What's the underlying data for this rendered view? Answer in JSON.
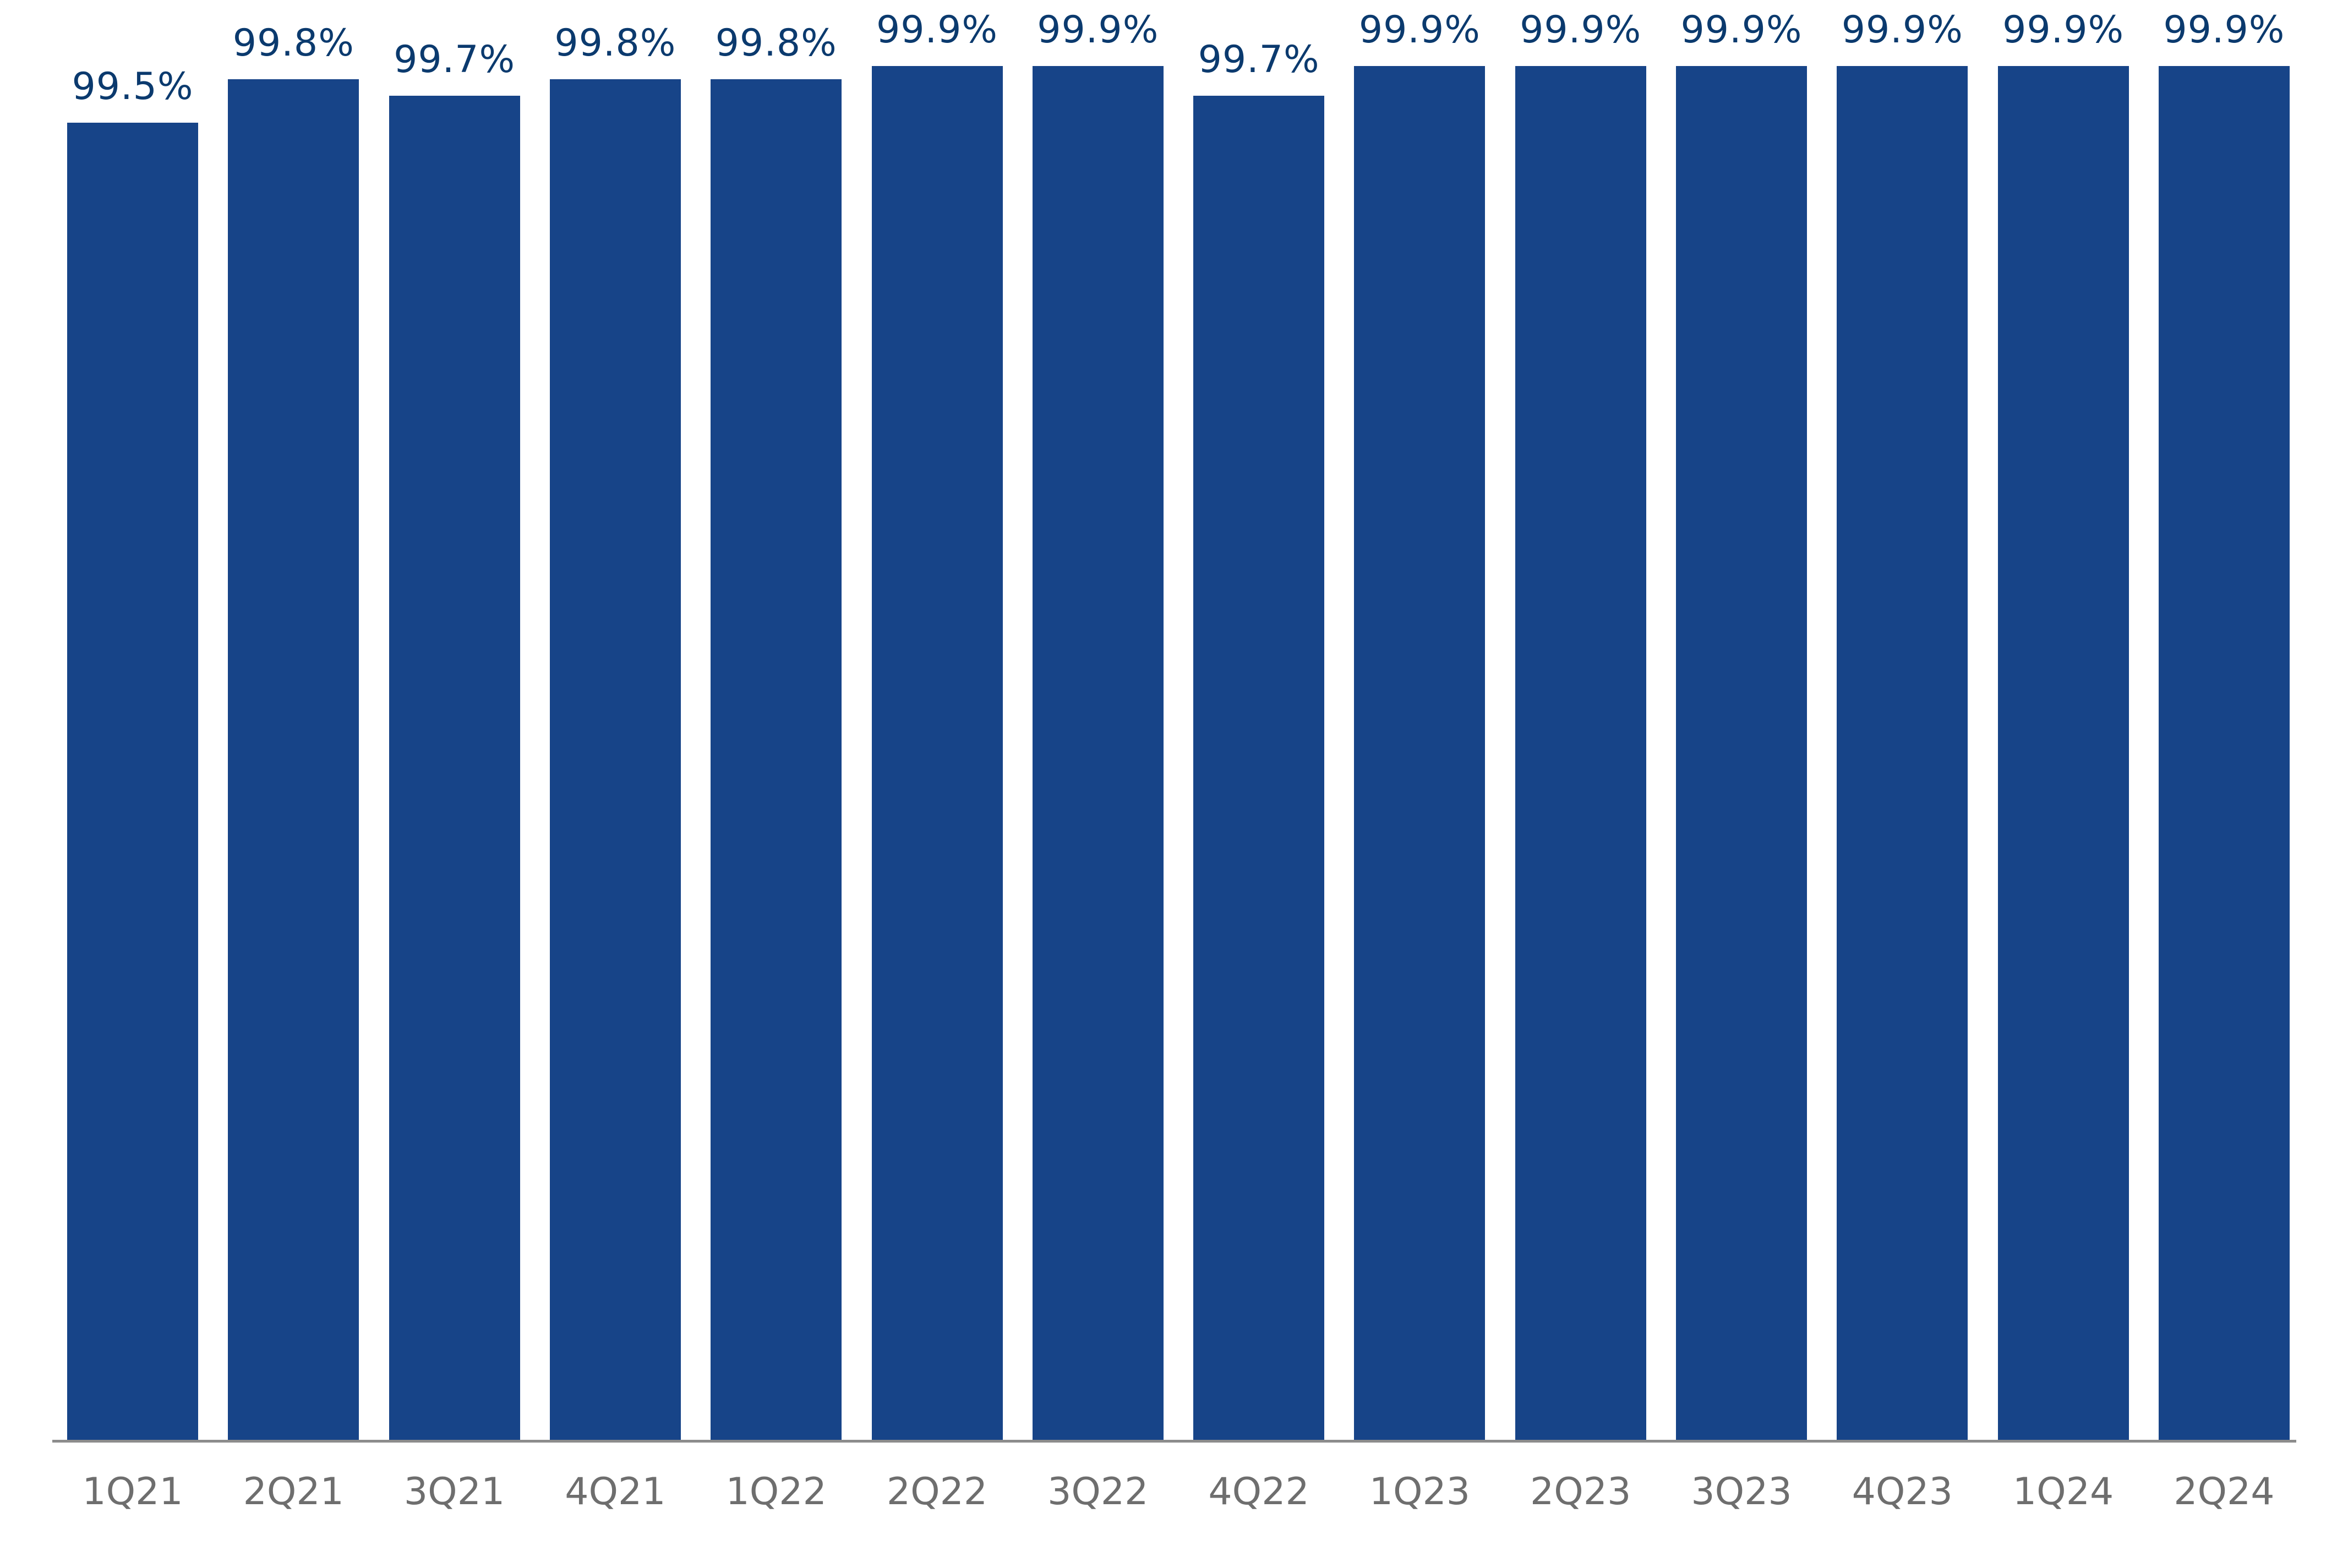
{
  "chart_data": {
    "type": "bar",
    "title": "",
    "xlabel": "",
    "ylabel": "",
    "categories": [
      "1Q21",
      "2Q21",
      "3Q21",
      "4Q21",
      "1Q22",
      "2Q22",
      "3Q22",
      "4Q22",
      "1Q23",
      "2Q23",
      "3Q23",
      "4Q23",
      "1Q24",
      "2Q24"
    ],
    "values": [
      99.5,
      99.8,
      99.7,
      99.8,
      99.8,
      99.9,
      99.9,
      99.7,
      99.9,
      99.9,
      99.9,
      99.9,
      99.9,
      99.9
    ],
    "value_labels": [
      "99.5%",
      "99.8%",
      "99.7%",
      "99.8%",
      "99.8%",
      "99.9%",
      "99.9%",
      "99.7%",
      "99.9%",
      "99.9%",
      "99.9%",
      "99.9%",
      "99.9%",
      "99.9%"
    ],
    "ylim": [
      98.9,
      99.9
    ],
    "grid": false,
    "legend": null,
    "colors": {
      "bar": "#174488",
      "value_label": "#0b3a6e",
      "axis_label": "#6e6e6e",
      "axis_line": "#8c8c8c"
    }
  }
}
